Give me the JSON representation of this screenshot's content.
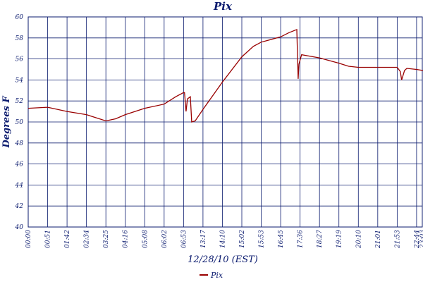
{
  "chart_data": {
    "type": "line",
    "title": "Pix",
    "x_label": "12/28/10 (EST)",
    "y_label": "Degrees F",
    "x": [
      0,
      1,
      2,
      3,
      4,
      4.5,
      5,
      6,
      7,
      7.6,
      8,
      8.05,
      8.13,
      8.2,
      8.35,
      8.42,
      8.6,
      9,
      10,
      11,
      11.6,
      12,
      13,
      13.43,
      13.83,
      13.9,
      13.94,
      14.08,
      15,
      16,
      16.5,
      17,
      18,
      19,
      19.16,
      19.23,
      19.38,
      19.5,
      20,
      20.33
    ],
    "series": [
      {
        "name": "Pix",
        "color": "#990000",
        "values": [
          51.3,
          51.4,
          51.0,
          50.7,
          50.1,
          50.3,
          50.7,
          51.3,
          51.7,
          52.4,
          52.8,
          52.8,
          51.0,
          52.2,
          52.4,
          50.0,
          50.1,
          51.2,
          53.8,
          56.2,
          57.2,
          57.6,
          58.1,
          58.5,
          58.8,
          54.1,
          55.5,
          56.4,
          56.1,
          55.6,
          55.3,
          55.2,
          55.2,
          55.2,
          54.8,
          54.0,
          54.9,
          55.1,
          55.0,
          54.9
        ]
      }
    ],
    "xlim": [
      0,
      20.33
    ],
    "xticks": [
      {
        "value": 0,
        "label": "00:00"
      },
      {
        "value": 1,
        "label": "00:51"
      },
      {
        "value": 2,
        "label": "01:42"
      },
      {
        "value": 3,
        "label": "02:34"
      },
      {
        "value": 4,
        "label": "03:25"
      },
      {
        "value": 5,
        "label": "04:16"
      },
      {
        "value": 6,
        "label": "05:08"
      },
      {
        "value": 7,
        "label": "06:02"
      },
      {
        "value": 8,
        "label": "06:53"
      },
      {
        "value": 9,
        "label": "13:17"
      },
      {
        "value": 10,
        "label": "14:10"
      },
      {
        "value": 11,
        "label": "15:02"
      },
      {
        "value": 12,
        "label": "15:53"
      },
      {
        "value": 13,
        "label": "16:45"
      },
      {
        "value": 14,
        "label": "17:36"
      },
      {
        "value": 15,
        "label": "18:27"
      },
      {
        "value": 16,
        "label": "19:19"
      },
      {
        "value": 17,
        "label": "20:10"
      },
      {
        "value": 18,
        "label": "21:01"
      },
      {
        "value": 19,
        "label": "21:53"
      },
      {
        "value": 20,
        "label": "22:44"
      },
      {
        "value": 20.33,
        "label": "23:03"
      }
    ],
    "ylim": [
      40,
      60
    ],
    "yticks": [
      40,
      42,
      44,
      46,
      48,
      50,
      52,
      54,
      56,
      58,
      60
    ],
    "grid": true,
    "legend": "bottom"
  }
}
